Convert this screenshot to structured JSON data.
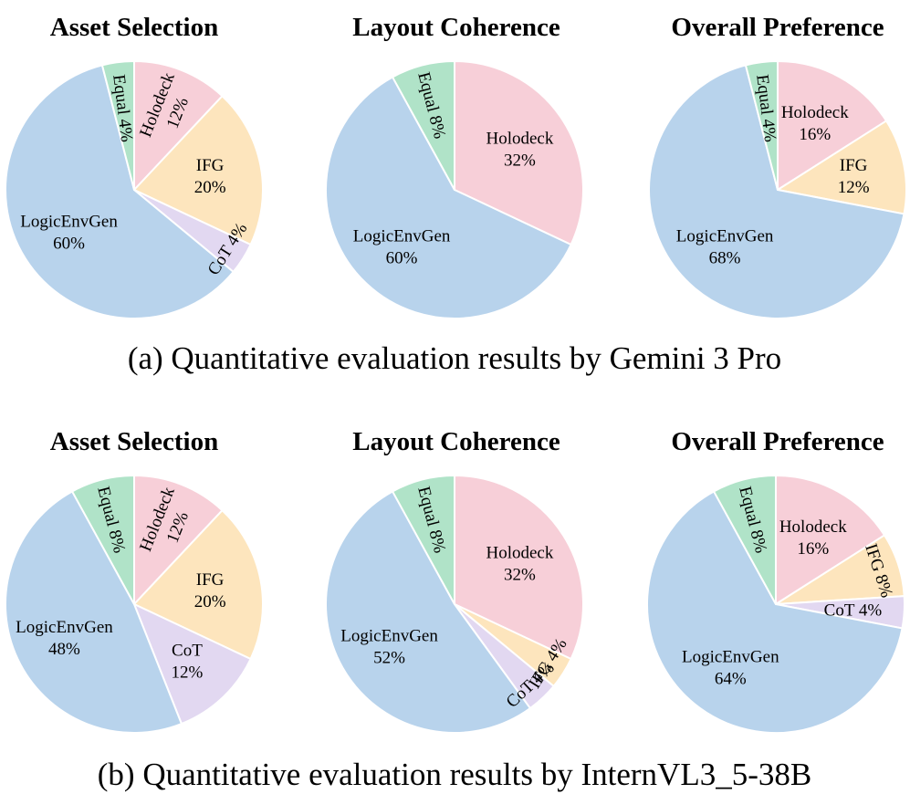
{
  "captions": [
    "(a) Quantitative evaluation results by Gemini 3 Pro",
    "(b) Quantitative evaluation results by InternVL3_5-38B"
  ],
  "colors": {
    "Holodeck": "#f7cfd8",
    "IFG": "#fde5bd",
    "CoT": "#e2d8f1",
    "LogicEnvGen": "#b8d3ec",
    "Equal": "#b0e3c8"
  },
  "chart_data": [
    {
      "type": "pie",
      "group": "a",
      "title": "Asset Selection",
      "start": "top",
      "direction": "clockwise",
      "slices": [
        {
          "name": "Holodeck",
          "value": 12,
          "label": "Holodeck\n12%",
          "style": "radial"
        },
        {
          "name": "IFG",
          "value": 20,
          "label": "IFG\n20%",
          "style": "horizontal"
        },
        {
          "name": "CoT",
          "value": 4,
          "label": "CoT 4%",
          "style": "tangent"
        },
        {
          "name": "LogicEnvGen",
          "value": 60,
          "label": "LogicEnvGen\n60%",
          "style": "horizontal"
        },
        {
          "name": "Equal",
          "value": 4,
          "label": "Equal 4%",
          "style": "radial"
        }
      ]
    },
    {
      "type": "pie",
      "group": "a",
      "title": "Layout Coherence",
      "start": "top",
      "direction": "clockwise",
      "slices": [
        {
          "name": "Holodeck",
          "value": 32,
          "label": "Holodeck\n32%",
          "style": "horizontal"
        },
        {
          "name": "LogicEnvGen",
          "value": 60,
          "label": "LogicEnvGen\n60%",
          "style": "horizontal"
        },
        {
          "name": "Equal",
          "value": 8,
          "label": "Equal 8%",
          "style": "radial"
        }
      ]
    },
    {
      "type": "pie",
      "group": "a",
      "title": "Overall Preference",
      "start": "top",
      "direction": "clockwise",
      "slices": [
        {
          "name": "Holodeck",
          "value": 16,
          "label": "Holodeck\n16%",
          "style": "horizontal"
        },
        {
          "name": "IFG",
          "value": 12,
          "label": "IFG\n12%",
          "style": "horizontal"
        },
        {
          "name": "LogicEnvGen",
          "value": 68,
          "label": "LogicEnvGen\n68%",
          "style": "horizontal"
        },
        {
          "name": "Equal",
          "value": 4,
          "label": "Equal 4%",
          "style": "radial"
        }
      ]
    },
    {
      "type": "pie",
      "group": "b",
      "title": "Asset Selection",
      "start": "top",
      "direction": "clockwise",
      "slices": [
        {
          "name": "Holodeck",
          "value": 12,
          "label": "Holodeck\n12%",
          "style": "radial"
        },
        {
          "name": "IFG",
          "value": 20,
          "label": "IFG\n20%",
          "style": "horizontal"
        },
        {
          "name": "CoT",
          "value": 12,
          "label": "CoT\n12%",
          "style": "horizontal"
        },
        {
          "name": "LogicEnvGen",
          "value": 48,
          "label": "LogicEnvGen\n48%",
          "style": "horizontal"
        },
        {
          "name": "Equal",
          "value": 8,
          "label": "Equal 8%",
          "style": "radial"
        }
      ]
    },
    {
      "type": "pie",
      "group": "b",
      "title": "Layout Coherence",
      "start": "top",
      "direction": "clockwise",
      "slices": [
        {
          "name": "Holodeck",
          "value": 32,
          "label": "Holodeck\n32%",
          "style": "horizontal"
        },
        {
          "name": "IFG",
          "value": 4,
          "label": "IFG 4%",
          "style": "tangent"
        },
        {
          "name": "CoT",
          "value": 4,
          "label": "CoT 4%",
          "style": "tangent"
        },
        {
          "name": "LogicEnvGen",
          "value": 52,
          "label": "LogicEnvGen\n52%",
          "style": "horizontal"
        },
        {
          "name": "Equal",
          "value": 8,
          "label": "Equal 8%",
          "style": "radial"
        }
      ]
    },
    {
      "type": "pie",
      "group": "b",
      "title": "Overall Preference",
      "start": "top",
      "direction": "clockwise",
      "slices": [
        {
          "name": "Holodeck",
          "value": 16,
          "label": "Holodeck\n16%",
          "style": "horizontal"
        },
        {
          "name": "IFG",
          "value": 8,
          "label": "IFG 8%",
          "style": "tangent"
        },
        {
          "name": "CoT",
          "value": 4,
          "label": "CoT 4%",
          "style": "horizontal"
        },
        {
          "name": "LogicEnvGen",
          "value": 64,
          "label": "LogicEnvGen\n64%",
          "style": "horizontal"
        },
        {
          "name": "Equal",
          "value": 8,
          "label": "Equal 8%",
          "style": "radial"
        }
      ]
    }
  ]
}
